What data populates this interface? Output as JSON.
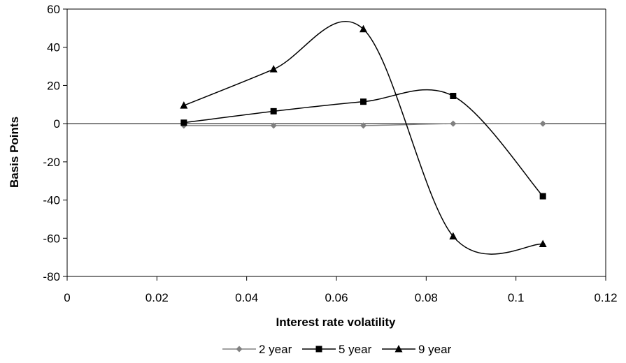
{
  "chart_data": {
    "type": "line",
    "title": "",
    "xlabel": "Interest rate volatility",
    "ylabel": "Basis Points",
    "xlim": [
      0,
      0.12
    ],
    "ylim": [
      -80,
      60
    ],
    "x_ticks": [
      "0",
      "0.02",
      "0.04",
      "0.06",
      "0.08",
      "0.1",
      "0.12"
    ],
    "y_ticks": [
      "60",
      "40",
      "20",
      "0",
      "-20",
      "-40",
      "-60",
      "-80"
    ],
    "x_tick_values": [
      0,
      0.02,
      0.04,
      0.06,
      0.08,
      0.1,
      0.12
    ],
    "y_tick_values": [
      60,
      40,
      20,
      0,
      -20,
      -40,
      -60,
      -80
    ],
    "grid": false,
    "legend_position": "bottom",
    "smooth": true,
    "series": [
      {
        "name": "2 year",
        "marker": "diamond",
        "color": "#808080",
        "x": [
          0.026,
          0.046,
          0.066,
          0.086,
          0.106
        ],
        "y": [
          -1,
          -1,
          -1,
          0,
          0
        ]
      },
      {
        "name": "5 year",
        "marker": "square",
        "color": "#000000",
        "x": [
          0.026,
          0.046,
          0.066,
          0.086,
          0.106
        ],
        "y": [
          0.5,
          6.5,
          11.5,
          14.5,
          -38
        ]
      },
      {
        "name": "9 year",
        "marker": "triangle",
        "color": "#000000",
        "x": [
          0.026,
          0.046,
          0.066,
          0.086,
          0.106
        ],
        "y": [
          9.5,
          28.5,
          49.5,
          -59,
          -63
        ]
      }
    ]
  }
}
